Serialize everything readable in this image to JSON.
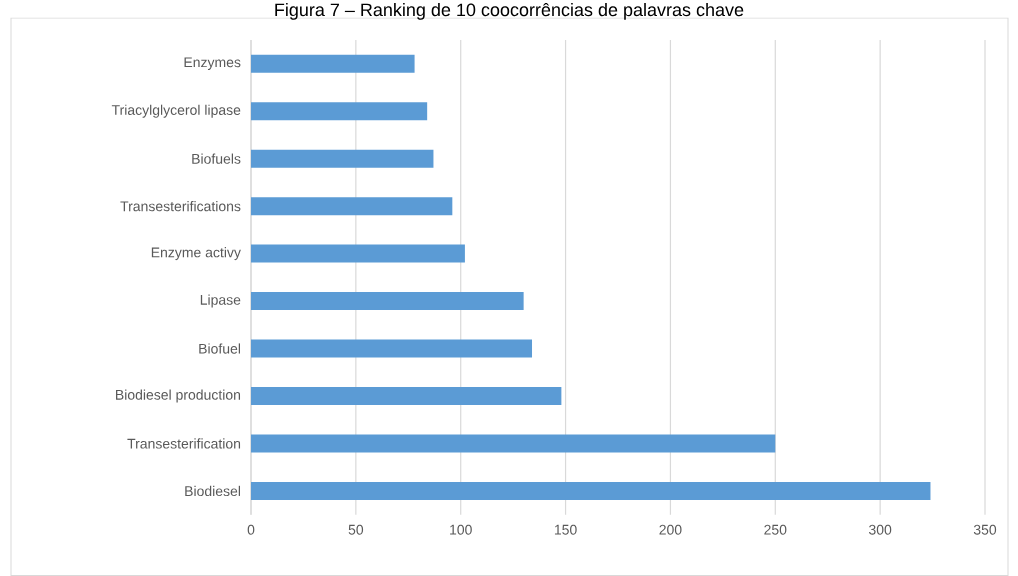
{
  "chart_data": {
    "type": "bar",
    "orientation": "horizontal",
    "title": "Figura 7 – Ranking de 10 coocorrências de palavras chave",
    "categories": [
      "Enzymes",
      "Triacylglycerol lipase",
      "Biofuels",
      "Transesterifications",
      "Enzyme activy",
      "Lipase",
      "Biofuel",
      "Biodiesel production",
      "Transesterification",
      "Biodiesel"
    ],
    "values": [
      78,
      84,
      87,
      96,
      102,
      130,
      134,
      148,
      250,
      324
    ],
    "color": "#5b9bd5",
    "xlim": [
      0,
      350
    ],
    "xticks": [
      0,
      50,
      100,
      150,
      200,
      250,
      300,
      350
    ],
    "grid": "x"
  }
}
